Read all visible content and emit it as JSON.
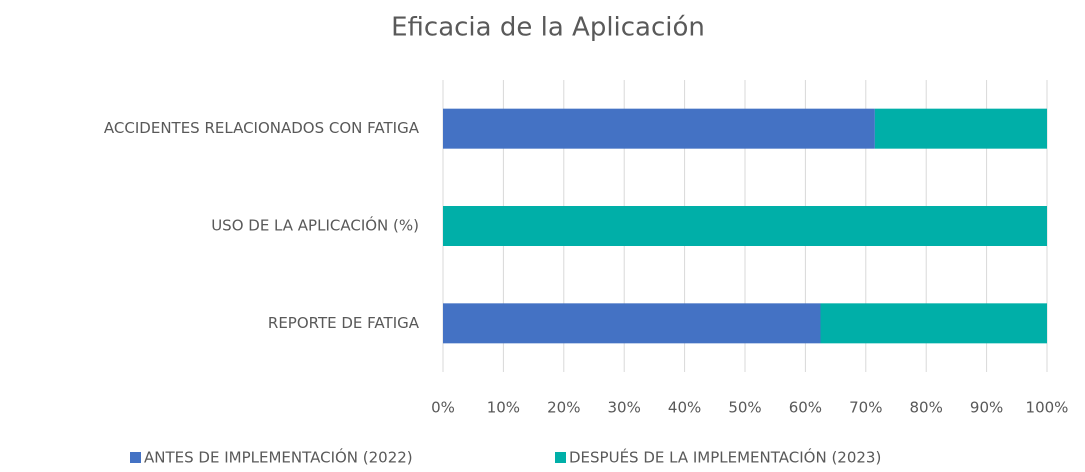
{
  "chart_data": {
    "type": "stacked-bar-horizontal",
    "title": "Eficacia de la Aplicación",
    "categories": [
      "ACCIDENTES RELACIONADOS CON FATIGA",
      "USO DE LA APLICACIÓN (%)",
      "REPORTE DE FATIGA"
    ],
    "series": [
      {
        "name": "ANTES DE IMPLEMENTACIÓN (2022)",
        "color": "#4472c4",
        "values": [
          71.5,
          0,
          62.5
        ]
      },
      {
        "name": "DESPUÉS DE LA IMPLEMENTACIÓN (2023)",
        "color": "#00afa8",
        "values": [
          28.5,
          100,
          37.5
        ]
      }
    ],
    "xlim": [
      0,
      100
    ],
    "xticks": [
      {
        "value": 0,
        "label": "0%"
      },
      {
        "value": 10,
        "label": "10%"
      },
      {
        "value": 20,
        "label": "20%"
      },
      {
        "value": 30,
        "label": "30%"
      },
      {
        "value": 40,
        "label": "40%"
      },
      {
        "value": 50,
        "label": "50%"
      },
      {
        "value": 60,
        "label": "60%"
      },
      {
        "value": 70,
        "label": "70%"
      },
      {
        "value": 80,
        "label": "80%"
      },
      {
        "value": 90,
        "label": "90%"
      },
      {
        "value": 100,
        "label": "100%"
      }
    ],
    "grid": true,
    "legend": "bottom"
  }
}
